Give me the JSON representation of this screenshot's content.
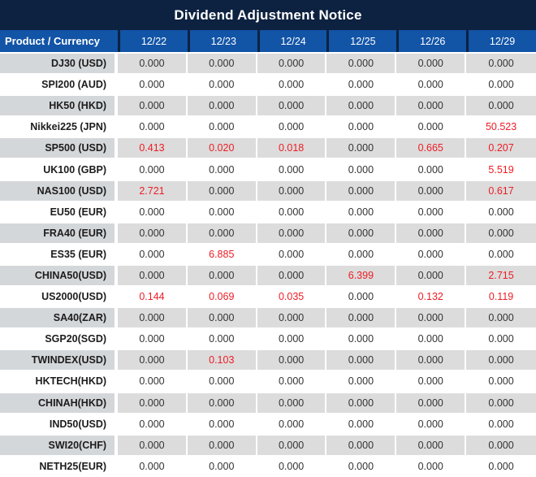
{
  "title": "Dividend Adjustment Notice",
  "colors": {
    "title_bg": "#0d2240",
    "header_bg": "#1254a6",
    "header_text": "#ffffff",
    "stripe_value_bg": "#dcdcdc",
    "stripe_label_bg": "#d4d7da",
    "value_text": "#333333",
    "highlight_red": "#ed1c24"
  },
  "table": {
    "header": [
      "Product / Currency",
      "12/22",
      "12/23",
      "12/24",
      "12/25",
      "12/26",
      "12/29"
    ],
    "rows": [
      {
        "product": "DJ30 (USD)",
        "values": [
          "0.000",
          "0.000",
          "0.000",
          "0.000",
          "0.000",
          "0.000"
        ],
        "red": [
          0,
          0,
          0,
          0,
          0,
          0
        ]
      },
      {
        "product": "SPI200 (AUD)",
        "values": [
          "0.000",
          "0.000",
          "0.000",
          "0.000",
          "0.000",
          "0.000"
        ],
        "red": [
          0,
          0,
          0,
          0,
          0,
          0
        ]
      },
      {
        "product": "HK50 (HKD)",
        "values": [
          "0.000",
          "0.000",
          "0.000",
          "0.000",
          "0.000",
          "0.000"
        ],
        "red": [
          0,
          0,
          0,
          0,
          0,
          0
        ]
      },
      {
        "product": "Nikkei225 (JPN)",
        "values": [
          "0.000",
          "0.000",
          "0.000",
          "0.000",
          "0.000",
          "50.523"
        ],
        "red": [
          0,
          0,
          0,
          0,
          0,
          1
        ]
      },
      {
        "product": "SP500 (USD)",
        "values": [
          "0.413",
          "0.020",
          "0.018",
          "0.000",
          "0.665",
          "0.207"
        ],
        "red": [
          1,
          1,
          1,
          0,
          1,
          1
        ]
      },
      {
        "product": "UK100 (GBP)",
        "values": [
          "0.000",
          "0.000",
          "0.000",
          "0.000",
          "0.000",
          "5.519"
        ],
        "red": [
          0,
          0,
          0,
          0,
          0,
          1
        ]
      },
      {
        "product": "NAS100 (USD)",
        "values": [
          "2.721",
          "0.000",
          "0.000",
          "0.000",
          "0.000",
          "0.617"
        ],
        "red": [
          1,
          0,
          0,
          0,
          0,
          1
        ]
      },
      {
        "product": "EU50 (EUR)",
        "values": [
          "0.000",
          "0.000",
          "0.000",
          "0.000",
          "0.000",
          "0.000"
        ],
        "red": [
          0,
          0,
          0,
          0,
          0,
          0
        ]
      },
      {
        "product": "FRA40 (EUR)",
        "values": [
          "0.000",
          "0.000",
          "0.000",
          "0.000",
          "0.000",
          "0.000"
        ],
        "red": [
          0,
          0,
          0,
          0,
          0,
          0
        ]
      },
      {
        "product": "ES35 (EUR)",
        "values": [
          "0.000",
          "6.885",
          "0.000",
          "0.000",
          "0.000",
          "0.000"
        ],
        "red": [
          0,
          1,
          0,
          0,
          0,
          0
        ]
      },
      {
        "product": "CHINA50(USD)",
        "values": [
          "0.000",
          "0.000",
          "0.000",
          "6.399",
          "0.000",
          "2.715"
        ],
        "red": [
          0,
          0,
          0,
          1,
          0,
          1
        ]
      },
      {
        "product": "US2000(USD)",
        "values": [
          "0.144",
          "0.069",
          "0.035",
          "0.000",
          "0.132",
          "0.119"
        ],
        "red": [
          1,
          1,
          1,
          0,
          1,
          1
        ]
      },
      {
        "product": "SA40(ZAR)",
        "values": [
          "0.000",
          "0.000",
          "0.000",
          "0.000",
          "0.000",
          "0.000"
        ],
        "red": [
          0,
          0,
          0,
          0,
          0,
          0
        ]
      },
      {
        "product": "SGP20(SGD)",
        "values": [
          "0.000",
          "0.000",
          "0.000",
          "0.000",
          "0.000",
          "0.000"
        ],
        "red": [
          0,
          0,
          0,
          0,
          0,
          0
        ]
      },
      {
        "product": "TWINDEX(USD)",
        "values": [
          "0.000",
          "0.103",
          "0.000",
          "0.000",
          "0.000",
          "0.000"
        ],
        "red": [
          0,
          1,
          0,
          0,
          0,
          0
        ]
      },
      {
        "product": "HKTECH(HKD)",
        "values": [
          "0.000",
          "0.000",
          "0.000",
          "0.000",
          "0.000",
          "0.000"
        ],
        "red": [
          0,
          0,
          0,
          0,
          0,
          0
        ]
      },
      {
        "product": "CHINAH(HKD)",
        "values": [
          "0.000",
          "0.000",
          "0.000",
          "0.000",
          "0.000",
          "0.000"
        ],
        "red": [
          0,
          0,
          0,
          0,
          0,
          0
        ]
      },
      {
        "product": "IND50(USD)",
        "values": [
          "0.000",
          "0.000",
          "0.000",
          "0.000",
          "0.000",
          "0.000"
        ],
        "red": [
          0,
          0,
          0,
          0,
          0,
          0
        ]
      },
      {
        "product": "SWI20(CHF)",
        "values": [
          "0.000",
          "0.000",
          "0.000",
          "0.000",
          "0.000",
          "0.000"
        ],
        "red": [
          0,
          0,
          0,
          0,
          0,
          0
        ]
      },
      {
        "product": "NETH25(EUR)",
        "values": [
          "0.000",
          "0.000",
          "0.000",
          "0.000",
          "0.000",
          "0.000"
        ],
        "red": [
          0,
          0,
          0,
          0,
          0,
          0
        ]
      }
    ]
  }
}
